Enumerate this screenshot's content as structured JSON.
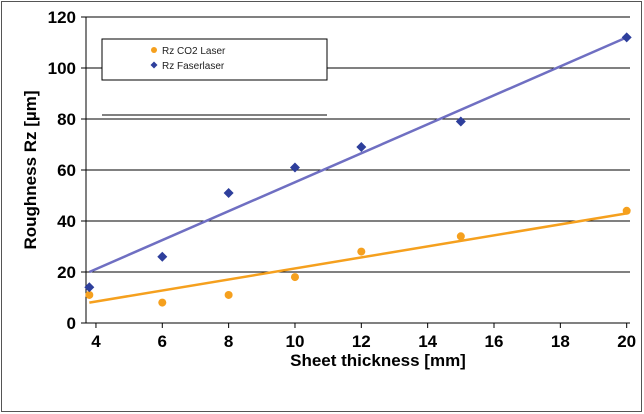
{
  "chart_data": {
    "type": "scatter",
    "title": "",
    "xlabel": "Sheet thickness [mm]",
    "ylabel": "Roughness Rz [µm]",
    "xlim": [
      3.7,
      20.1
    ],
    "ylim": [
      0,
      120
    ],
    "x_ticks": [
      4,
      6,
      8,
      10,
      12,
      14,
      16,
      18,
      20
    ],
    "y_ticks": [
      0,
      20,
      40,
      60,
      80,
      100,
      120
    ],
    "grid": "horizontal",
    "legend_position": "top-left",
    "series": [
      {
        "name": "Rz CO2 Laser",
        "color": "#f5a01e",
        "marker": "circle",
        "points": [
          {
            "x": 3.8,
            "y": 11
          },
          {
            "x": 6,
            "y": 8
          },
          {
            "x": 8,
            "y": 11
          },
          {
            "x": 10,
            "y": 18
          },
          {
            "x": 12,
            "y": 28
          },
          {
            "x": 15,
            "y": 34
          },
          {
            "x": 20,
            "y": 44
          }
        ],
        "trendline": {
          "x1": 3.8,
          "y1": 8,
          "x2": 20,
          "y2": 43
        }
      },
      {
        "name": "Rz Faserlaser",
        "color": "#2e3f9c",
        "marker": "diamond",
        "points": [
          {
            "x": 3.8,
            "y": 14
          },
          {
            "x": 6,
            "y": 26
          },
          {
            "x": 8,
            "y": 51
          },
          {
            "x": 10,
            "y": 61
          },
          {
            "x": 12,
            "y": 69
          },
          {
            "x": 15,
            "y": 79
          },
          {
            "x": 20,
            "y": 112
          }
        ],
        "trendline": {
          "x1": 3.8,
          "y1": 20,
          "x2": 20,
          "y2": 112
        },
        "trendline_color": "#6f6fc2"
      }
    ]
  }
}
